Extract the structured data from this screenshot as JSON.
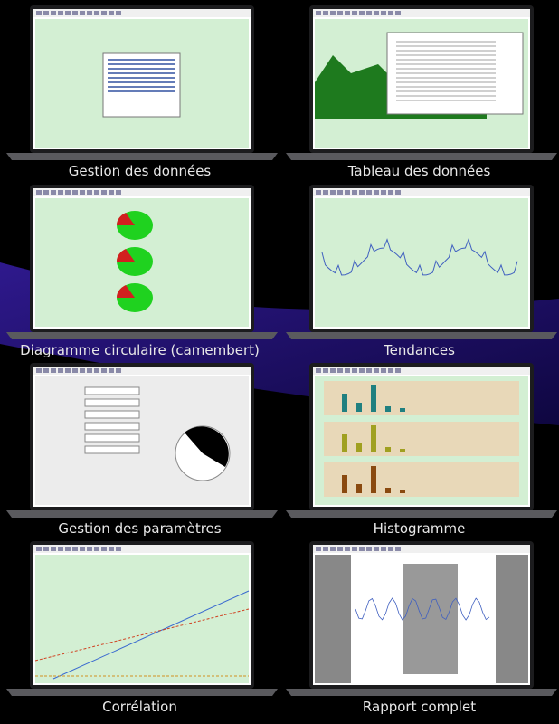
{
  "captions": [
    "Gestion des données",
    "Tableau des données",
    "Diagramme circulaire (camembert)",
    "Tendances",
    "Gestion des paramètres",
    "Histogramme",
    "Corrélation",
    "Rapport complet"
  ]
}
